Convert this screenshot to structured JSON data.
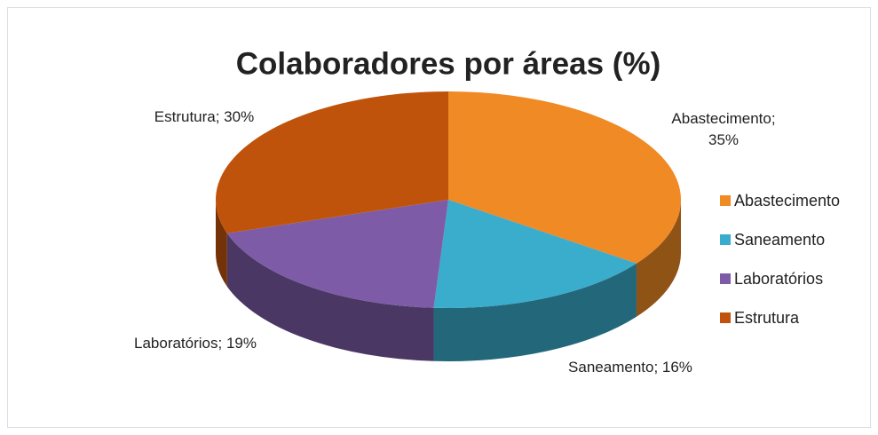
{
  "chart_data": {
    "type": "pie",
    "title": "Colaboradores por áreas (%)",
    "categories": [
      "Abastecimento",
      "Saneamento",
      "Laboratórios",
      "Estrutura"
    ],
    "values": [
      35,
      16,
      19,
      30
    ],
    "value_labels": [
      "Abastecimento; 35%",
      "Saneamento; 16%",
      "Laboratórios; 19%",
      "Estrutura; 30%"
    ],
    "colors": [
      "#f08a24",
      "#3aaccc",
      "#7d5ba6",
      "#c0530c"
    ],
    "legend": "right"
  }
}
